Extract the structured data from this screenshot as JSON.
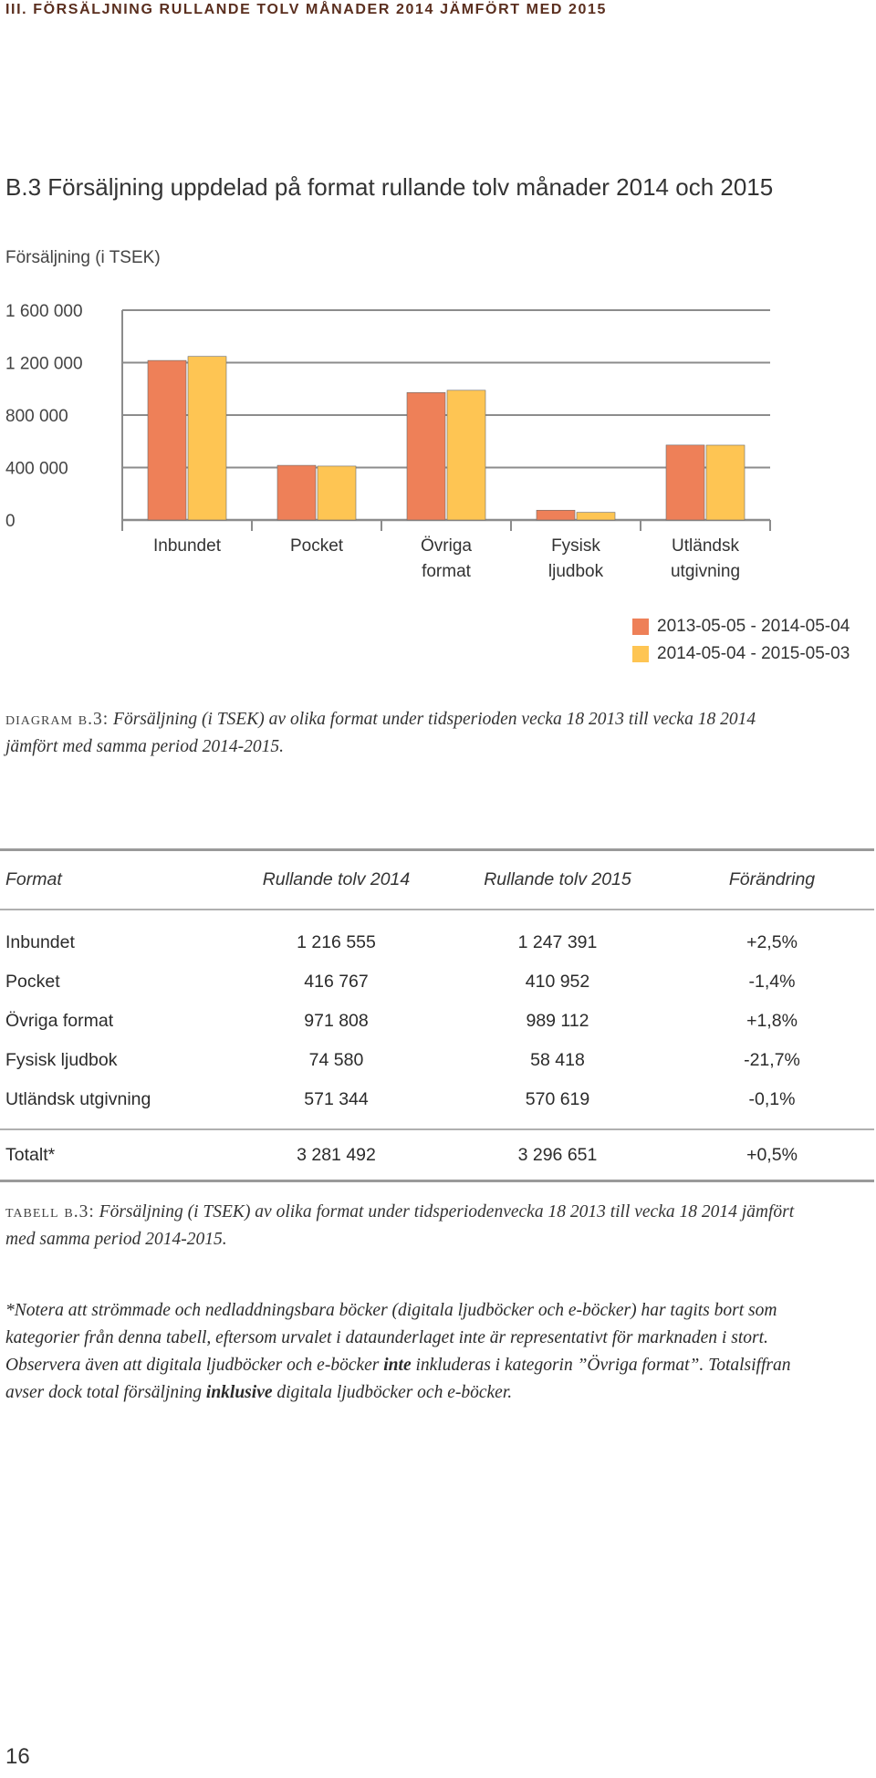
{
  "section_header": "III. FÖRSÄLJNING RULLANDE TOLV MÅNADER 2014 JÄMFÖRT MED 2015",
  "chart_heading": "B.3 Försäljning uppdelad på format rullande tolv månader 2014 och 2015",
  "chart_data": {
    "type": "bar",
    "title": "",
    "ylabel": "Försäljning (i TSEK)",
    "xlabel": "",
    "categories": [
      [
        "Inbundet"
      ],
      [
        "Pocket"
      ],
      [
        "Övriga",
        "format"
      ],
      [
        "Fysisk",
        "ljudbok"
      ],
      [
        "Utländsk",
        "utgivning"
      ]
    ],
    "series": [
      {
        "name": "2013-05-05 - 2014-05-04",
        "color": "#ee8058",
        "values": [
          1216555,
          416767,
          971808,
          74580,
          571344
        ]
      },
      {
        "name": "2014-05-04 - 2015-05-03",
        "color": "#fec553",
        "values": [
          1247391,
          410952,
          989112,
          58418,
          570619
        ]
      }
    ],
    "yticks": [
      {
        "value": 0,
        "label": "0"
      },
      {
        "value": 400000,
        "label": "400 000"
      },
      {
        "value": 800000,
        "label": "800 000"
      },
      {
        "value": 1200000,
        "label": "1 200 000"
      },
      {
        "value": 1600000,
        "label": "1 600 000"
      }
    ],
    "ylim": [
      0,
      1600000
    ],
    "grid": true,
    "legend_position": "bottom-right"
  },
  "diagram_caption": {
    "label": "diagram b.3:",
    "text": "Försäljning (i TSEK) av olika format under tidsperioden vecka 18 2013 till vecka 18 2014 jämfört med samma period 2014-2015."
  },
  "table": {
    "headers": [
      "Format",
      "Rullande tolv 2014",
      "Rullande tolv 2015",
      "Förändring"
    ],
    "rows": [
      [
        "Inbundet",
        "1 216 555",
        "1 247 391",
        "+2,5%"
      ],
      [
        "Pocket",
        "416 767",
        "410 952",
        "-1,4%"
      ],
      [
        "Övriga format",
        "971 808",
        "989 112",
        "+1,8%"
      ],
      [
        "Fysisk ljudbok",
        "74 580",
        "58 418",
        "-21,7%"
      ],
      [
        "Utländsk utgivning",
        "571 344",
        "570 619",
        "-0,1%"
      ]
    ],
    "total": [
      "Totalt*",
      "3 281 492",
      "3 296 651",
      "+0,5%"
    ]
  },
  "table_caption": {
    "label": "tabell b.3:",
    "text": "Försäljning (i TSEK) av olika format under tidsperiodenvecka 18 2013 till vecka 18 2014 jämfört med samma period 2014-2015."
  },
  "note": {
    "part1": "*Notera att strömmade och nedladdningsbara böcker (digitala ljudböcker och e-böcker) har tagits bort som kategorier från denna tabell, eftersom urvalet i dataunderlaget inte är representativt för marknaden i stort. Observera även att digitala ljudböcker och e-böcker ",
    "bold1": "inte",
    "part2": " inkluderas i kategorin ”Övriga format”. Totalsiffran avser dock total försäljning ",
    "bold2": "inklusive",
    "part3": " digitala ljudböcker och e-böcker."
  },
  "page_number": "16"
}
